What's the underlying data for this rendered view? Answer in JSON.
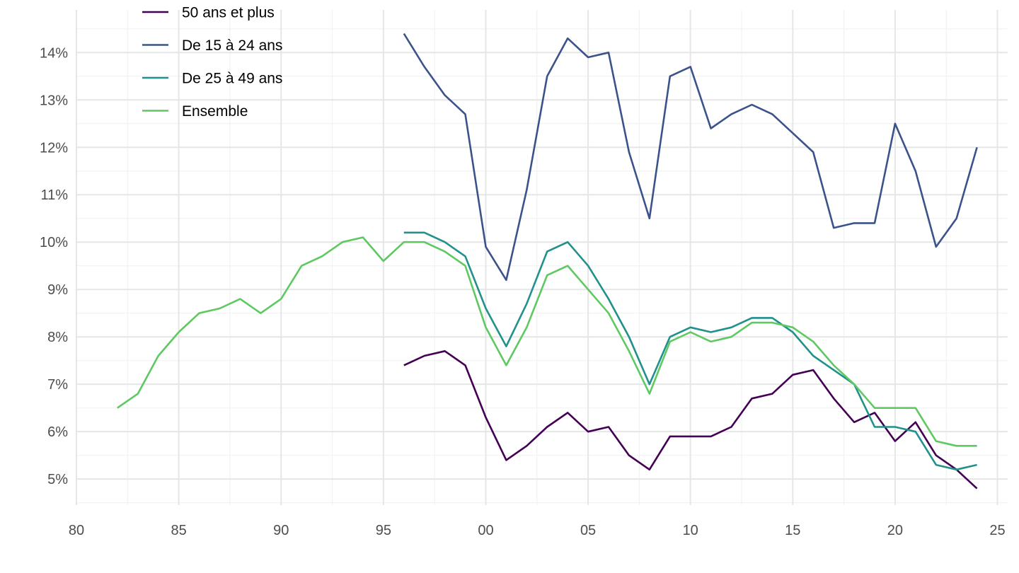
{
  "chart_data": {
    "type": "line",
    "title": "",
    "xlabel": "",
    "ylabel": "",
    "xlim": [
      1980,
      2025.5
    ],
    "ylim": [
      4.45,
      14.9
    ],
    "x_ticks": [
      {
        "value": 1980,
        "label": "80"
      },
      {
        "value": 1985,
        "label": "85"
      },
      {
        "value": 1990,
        "label": "90"
      },
      {
        "value": 1995,
        "label": "95"
      },
      {
        "value": 2000,
        "label": "00"
      },
      {
        "value": 2005,
        "label": "05"
      },
      {
        "value": 2010,
        "label": "10"
      },
      {
        "value": 2015,
        "label": "15"
      },
      {
        "value": 2020,
        "label": "20"
      },
      {
        "value": 2025,
        "label": "25"
      }
    ],
    "y_ticks": [
      {
        "value": 5,
        "label": "5%"
      },
      {
        "value": 6,
        "label": "6%"
      },
      {
        "value": 7,
        "label": "7%"
      },
      {
        "value": 8,
        "label": "8%"
      },
      {
        "value": 9,
        "label": "9%"
      },
      {
        "value": 10,
        "label": "10%"
      },
      {
        "value": 11,
        "label": "11%"
      },
      {
        "value": 12,
        "label": "12%"
      },
      {
        "value": 13,
        "label": "13%"
      },
      {
        "value": 14,
        "label": "14%"
      }
    ],
    "grid": true,
    "legend_position": "top-left",
    "series": [
      {
        "name": "50 ans et plus",
        "color": "#440154",
        "x": [
          1996,
          1997,
          1998,
          1999,
          2000,
          2001,
          2002,
          2003,
          2004,
          2005,
          2006,
          2007,
          2008,
          2009,
          2010,
          2011,
          2012,
          2013,
          2014,
          2015,
          2016,
          2017,
          2018,
          2019,
          2020,
          2021,
          2022,
          2023,
          2024
        ],
        "values": [
          7.4,
          7.6,
          7.7,
          7.4,
          6.3,
          5.4,
          5.7,
          6.1,
          6.4,
          6.0,
          6.1,
          5.5,
          5.2,
          5.9,
          5.9,
          5.9,
          6.1,
          6.7,
          6.8,
          7.2,
          7.3,
          6.7,
          6.2,
          6.4,
          5.8,
          6.2,
          5.5,
          5.2,
          4.8
        ]
      },
      {
        "name": "De 15 à 24 ans",
        "color": "#3b528b",
        "x": [
          1996,
          1997,
          1998,
          1999,
          2000,
          2001,
          2002,
          2003,
          2004,
          2005,
          2006,
          2007,
          2008,
          2009,
          2010,
          2011,
          2012,
          2013,
          2014,
          2015,
          2016,
          2017,
          2018,
          2019,
          2020,
          2021,
          2022,
          2023,
          2024
        ],
        "values": [
          14.4,
          13.7,
          13.1,
          12.7,
          9.9,
          9.2,
          11.1,
          13.5,
          14.3,
          13.9,
          14.0,
          11.9,
          10.5,
          13.5,
          13.7,
          12.4,
          12.7,
          12.9,
          12.7,
          12.3,
          11.9,
          10.3,
          10.4,
          10.4,
          12.5,
          11.5,
          9.9,
          10.5,
          12.0
        ]
      },
      {
        "name": "De 25 à 49 ans",
        "color": "#21918c",
        "x": [
          1996,
          1997,
          1998,
          1999,
          2000,
          2001,
          2002,
          2003,
          2004,
          2005,
          2006,
          2007,
          2008,
          2009,
          2010,
          2011,
          2012,
          2013,
          2014,
          2015,
          2016,
          2017,
          2018,
          2019,
          2020,
          2021,
          2022,
          2023,
          2024
        ],
        "values": [
          10.2,
          10.2,
          10.0,
          9.7,
          8.6,
          7.8,
          8.7,
          9.8,
          10.0,
          9.5,
          8.8,
          8.0,
          7.0,
          8.0,
          8.2,
          8.1,
          8.2,
          8.4,
          8.4,
          8.1,
          7.6,
          7.3,
          7.0,
          6.1,
          6.1,
          6.0,
          5.3,
          5.2,
          5.3
        ]
      },
      {
        "name": "Ensemble",
        "color": "#5ec962",
        "x": [
          1982,
          1983,
          1984,
          1985,
          1986,
          1987,
          1988,
          1989,
          1990,
          1991,
          1992,
          1993,
          1994,
          1995,
          1996,
          1997,
          1998,
          1999,
          2000,
          2001,
          2002,
          2003,
          2004,
          2005,
          2006,
          2007,
          2008,
          2009,
          2010,
          2011,
          2012,
          2013,
          2014,
          2015,
          2016,
          2017,
          2018,
          2019,
          2020,
          2021,
          2022,
          2023,
          2024
        ],
        "values": [
          6.5,
          6.8,
          7.6,
          8.1,
          8.5,
          8.6,
          8.8,
          8.5,
          8.8,
          9.5,
          9.7,
          10.0,
          10.1,
          9.6,
          10.0,
          10.0,
          9.8,
          9.5,
          8.2,
          7.4,
          8.2,
          9.3,
          9.5,
          9.0,
          8.5,
          7.7,
          6.8,
          7.9,
          8.1,
          7.9,
          8.0,
          8.3,
          8.3,
          8.2,
          7.9,
          7.4,
          7.0,
          6.5,
          6.5,
          6.5,
          5.8,
          5.7,
          5.7
        ]
      }
    ]
  }
}
